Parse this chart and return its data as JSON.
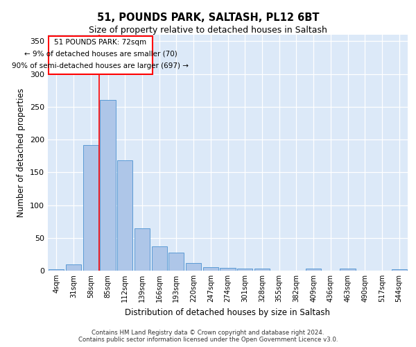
{
  "title1": "51, POUNDS PARK, SALTASH, PL12 6BT",
  "title2": "Size of property relative to detached houses in Saltash",
  "xlabel": "Distribution of detached houses by size in Saltash",
  "ylabel": "Number of detached properties",
  "categories": [
    "4sqm",
    "31sqm",
    "58sqm",
    "85sqm",
    "112sqm",
    "139sqm",
    "166sqm",
    "193sqm",
    "220sqm",
    "247sqm",
    "274sqm",
    "301sqm",
    "328sqm",
    "355sqm",
    "382sqm",
    "409sqm",
    "436sqm",
    "463sqm",
    "490sqm",
    "517sqm",
    "544sqm"
  ],
  "values": [
    2,
    10,
    192,
    260,
    168,
    65,
    37,
    28,
    12,
    5,
    4,
    3,
    3,
    0,
    0,
    3,
    0,
    3,
    0,
    0,
    2
  ],
  "bar_color": "#aec6e8",
  "bar_edge_color": "#5b9bd5",
  "annotation_text_line1": "51 POUNDS PARK: 72sqm",
  "annotation_text_line2": "← 9% of detached houses are smaller (70)",
  "annotation_text_line3": "90% of semi-detached houses are larger (697) →",
  "red_line_x": 2.5,
  "ylim": [
    0,
    360
  ],
  "yticks": [
    0,
    50,
    100,
    150,
    200,
    250,
    300,
    350
  ],
  "background_color": "#dce9f8",
  "footer1": "Contains HM Land Registry data © Crown copyright and database right 2024.",
  "footer2": "Contains public sector information licensed under the Open Government Licence v3.0."
}
